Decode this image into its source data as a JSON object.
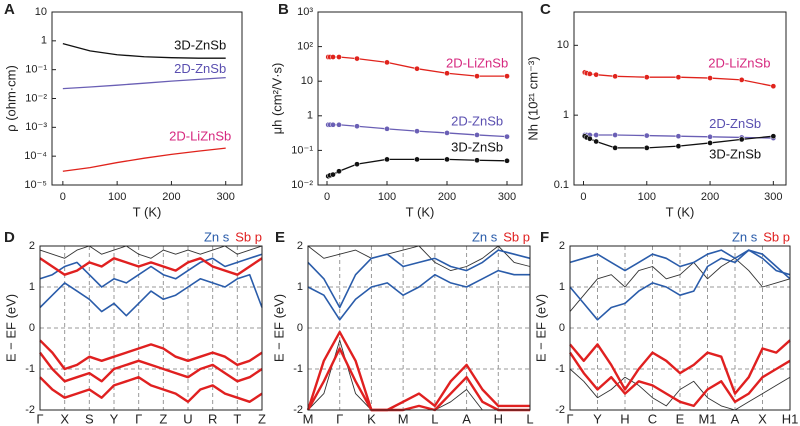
{
  "chart_data": [
    {
      "type": "line",
      "panel": "A",
      "y_label": "ρ (ohm·cm)",
      "x_label": "T (K)",
      "log_y": true,
      "xlim": [
        -20,
        330
      ],
      "xticks": [
        0,
        100,
        200,
        300
      ],
      "ylim": [
        1e-05,
        10
      ],
      "yticks": [
        {
          "value": 1e-05,
          "label": "10⁻⁵"
        },
        {
          "value": 0.0001,
          "label": "10⁻⁴"
        },
        {
          "value": 0.001,
          "label": "10⁻³"
        },
        {
          "value": 0.01,
          "label": "10⁻²"
        },
        {
          "value": 0.1,
          "label": "10⁻¹"
        },
        1,
        10
      ],
      "x": [
        0,
        50,
        100,
        150,
        200,
        250,
        300
      ],
      "series": [
        {
          "name": "3D-ZnSb",
          "color": "#111111",
          "label_color": "#111111",
          "values": [
            0.8,
            0.45,
            0.33,
            0.28,
            0.26,
            0.25,
            0.25
          ]
        },
        {
          "name": "2D-ZnSb",
          "color": "#6a5fb5",
          "label_color": "#5a4fb0",
          "values": [
            0.022,
            0.025,
            0.029,
            0.034,
            0.04,
            0.046,
            0.053
          ]
        },
        {
          "name": "2D-LiZnSb",
          "color": "#e0231c",
          "label_color": "#d6287f",
          "values": [
            3e-05,
            4e-05,
            6e-05,
            8.5e-05,
            0.000115,
            0.00015,
            0.00019
          ]
        }
      ]
    },
    {
      "type": "line",
      "panel": "B",
      "y_label": "μh (cm²/V·s)",
      "x_label": "T (K)",
      "log_y": true,
      "markers": true,
      "xlim": [
        -15,
        325
      ],
      "xticks": [
        0,
        100,
        200,
        300
      ],
      "ylim": [
        0.01,
        1000
      ],
      "yticks": [
        {
          "value": 0.01,
          "label": "10⁻²"
        },
        {
          "value": 0.1,
          "label": "10⁻¹"
        },
        1,
        10,
        {
          "value": 100,
          "label": "10²"
        },
        {
          "value": 1000,
          "label": "10³"
        }
      ],
      "x": [
        2,
        5,
        10,
        20,
        50,
        100,
        150,
        200,
        250,
        300
      ],
      "series": [
        {
          "name": "2D-LiZnSb",
          "color": "#e0231c",
          "label_color": "#d6287f",
          "values": [
            50,
            50,
            50,
            50,
            45,
            35,
            23,
            17,
            14,
            14
          ]
        },
        {
          "name": "2D-ZnSb",
          "color": "#6a5fb5",
          "label_color": "#5a4fb0",
          "values": [
            0.55,
            0.55,
            0.55,
            0.55,
            0.5,
            0.42,
            0.36,
            0.32,
            0.28,
            0.25
          ]
        },
        {
          "name": "3D-ZnSb",
          "color": "#111111",
          "label_color": "#111111",
          "values": [
            0.018,
            0.019,
            0.02,
            0.025,
            0.04,
            0.055,
            0.055,
            0.055,
            0.052,
            0.05
          ]
        }
      ]
    },
    {
      "type": "line",
      "panel": "C",
      "y_label": "Nh (10²¹ cm⁻³)",
      "x_label": "T (K)",
      "log_y": true,
      "markers": true,
      "xlim": [
        -15,
        320
      ],
      "xticks": [
        0,
        100,
        200,
        300
      ],
      "ylim": [
        0.1,
        30
      ],
      "yticks": [
        0.1,
        1,
        10
      ],
      "x": [
        2,
        5,
        10,
        20,
        50,
        100,
        150,
        200,
        250,
        300
      ],
      "series": [
        {
          "name": "2D-LiZnSb",
          "color": "#e0231c",
          "label_color": "#d6287f",
          "values": [
            4.1,
            4,
            3.9,
            3.8,
            3.6,
            3.5,
            3.5,
            3.4,
            3.2,
            2.6
          ]
        },
        {
          "name": "2D-ZnSb",
          "color": "#6a5fb5",
          "label_color": "#5a4fb0",
          "values": [
            0.52,
            0.52,
            0.52,
            0.52,
            0.52,
            0.51,
            0.5,
            0.49,
            0.48,
            0.47
          ]
        },
        {
          "name": "3D-ZnSb",
          "color": "#111111",
          "label_color": "#111111",
          "values": [
            0.5,
            0.48,
            0.46,
            0.42,
            0.34,
            0.34,
            0.36,
            0.4,
            0.45,
            0.5
          ]
        }
      ]
    },
    {
      "type": "band",
      "panel": "D",
      "y_label": "E − EF (eV)",
      "grid": true,
      "ylim": [
        -2,
        2
      ],
      "yticks": [
        -2,
        -1,
        0,
        1,
        2
      ],
      "categories": [
        "Γ",
        null,
        "X",
        null,
        "S",
        null,
        "Y",
        null,
        "Γ",
        null,
        "Z",
        null,
        "U",
        null,
        "R",
        null,
        "T",
        null,
        "Z"
      ],
      "series": [
        {
          "name": "Zn s",
          "color": "#2a5caa",
          "bands": [
            [
              0.5,
              0.8,
              1.1,
              0.9,
              0.7,
              0.4,
              0.6,
              0.3,
              0.6,
              0.9,
              0.7,
              0.8,
              1.0,
              1.2,
              1.1,
              1.0,
              1.2,
              1.3,
              0.5
            ],
            [
              1.2,
              1.3,
              1.5,
              1.6,
              1.3,
              1.0,
              1.2,
              1.1,
              1.3,
              1.5,
              1.3,
              1.2,
              1.4,
              1.6,
              1.7,
              1.5,
              1.6,
              1.7,
              1.8
            ]
          ]
        },
        {
          "name": "Sb p",
          "color": "#e02020",
          "bands": [
            [
              -0.3,
              -0.6,
              -1.0,
              -0.9,
              -0.7,
              -0.8,
              -0.7,
              -0.6,
              -0.5,
              -0.4,
              -0.5,
              -0.7,
              -0.8,
              -0.7,
              -0.6,
              -0.7,
              -0.9,
              -0.8,
              -0.6
            ],
            [
              -0.6,
              -1.0,
              -1.3,
              -1.2,
              -1.1,
              -1.3,
              -1.0,
              -0.9,
              -0.8,
              -0.9,
              -1.0,
              -1.1,
              -1.2,
              -1.0,
              -0.9,
              -1.1,
              -1.3,
              -1.2,
              -1.0
            ],
            [
              -1.2,
              -1.5,
              -1.7,
              -1.6,
              -1.5,
              -1.7,
              -1.4,
              -1.3,
              -1.2,
              -1.4,
              -1.5,
              -1.6,
              -1.8,
              -1.5,
              -1.4,
              -1.6,
              -1.7,
              -1.8,
              -1.6
            ],
            [
              1.7,
              1.5,
              1.3,
              1.4,
              1.6,
              1.5,
              1.7,
              1.6,
              1.5,
              1.6,
              1.5,
              1.4,
              1.6,
              1.7,
              1.5,
              1.4,
              1.3,
              1.5,
              1.7
            ]
          ]
        }
      ],
      "other_bands": {
        "color": "#333333",
        "bands": [
          [
            1.9,
            1.8,
            1.7,
            1.9,
            2.0,
            1.8,
            1.9,
            2.0,
            1.8,
            1.7,
            1.9,
            1.8,
            1.9,
            1.8,
            1.9,
            2.0,
            1.8,
            1.9,
            2.0
          ]
        ]
      }
    },
    {
      "type": "band",
      "panel": "E",
      "y_label": "E − EF (eV)",
      "grid": true,
      "ylim": [
        -2,
        2
      ],
      "yticks": [
        -2,
        -1,
        0,
        1,
        2
      ],
      "categories": [
        "M",
        null,
        "Γ",
        null,
        "K",
        null,
        "M",
        null,
        "L",
        null,
        "A",
        null,
        "H",
        null,
        "L"
      ],
      "series": [
        {
          "name": "Zn s",
          "color": "#2a5caa",
          "bands": [
            [
              1.0,
              0.8,
              0.2,
              0.7,
              1.0,
              1.1,
              0.8,
              1.0,
              1.3,
              1.1,
              1.0,
              1.2,
              1.4,
              1.3,
              1.3
            ],
            [
              1.6,
              1.2,
              0.5,
              1.3,
              1.7,
              1.8,
              1.5,
              1.6,
              1.7,
              1.5,
              1.4,
              1.6,
              1.9,
              1.8,
              1.7
            ]
          ]
        },
        {
          "name": "Sb p",
          "color": "#e02020",
          "bands": [
            [
              -2.0,
              -0.8,
              -0.1,
              -0.8,
              -2.0,
              -2.0,
              -1.8,
              -1.6,
              -1.9,
              -1.3,
              -0.9,
              -1.5,
              -1.9,
              -1.9,
              -1.9
            ],
            [
              -2.0,
              -1.3,
              -0.5,
              -1.3,
              -2.0,
              -2.0,
              -2.0,
              -1.9,
              -2.0,
              -1.6,
              -1.2,
              -1.8,
              -2.0,
              -2.0,
              -2.0
            ]
          ]
        }
      ],
      "other_bands": {
        "color": "#333333",
        "bands": [
          [
            2.0,
            1.7,
            1.8,
            1.9,
            1.7,
            1.8,
            1.9,
            2.0,
            1.6,
            1.4,
            1.5,
            1.7,
            2.0,
            1.6,
            1.5
          ],
          [
            -2.0,
            -1.6,
            -0.3,
            -1.6,
            -2.0,
            -2.0,
            -2.0,
            -2.0,
            -2.0,
            -1.8,
            -1.5,
            -2.0,
            -2.0,
            -2.0,
            -2.0
          ]
        ]
      }
    },
    {
      "type": "band",
      "panel": "F",
      "y_label": "E − EF (eV)",
      "grid": true,
      "ylim": [
        -2,
        2
      ],
      "yticks": [
        -2,
        -1,
        0,
        1,
        2
      ],
      "categories": [
        "Γ",
        null,
        "Y",
        null,
        "H",
        null,
        "C",
        null,
        "E",
        null,
        "M1",
        null,
        "A",
        null,
        "X",
        null,
        "H1"
      ],
      "series": [
        {
          "name": "Zn s",
          "color": "#2a5caa",
          "bands": [
            [
              1.0,
              0.6,
              0.2,
              0.5,
              0.6,
              0.9,
              1.1,
              1.0,
              0.8,
              0.9,
              1.5,
              1.7,
              1.6,
              1.9,
              1.8,
              1.5,
              1.2
            ],
            [
              1.6,
              1.7,
              1.8,
              1.6,
              1.4,
              1.6,
              1.8,
              1.7,
              1.5,
              1.6,
              1.8,
              1.9,
              1.7,
              1.9,
              1.7,
              1.4,
              1.3
            ]
          ]
        },
        {
          "name": "Sb p",
          "color": "#e02020",
          "bands": [
            [
              -0.4,
              -0.8,
              -0.4,
              -0.9,
              -1.5,
              -1.0,
              -0.6,
              -0.8,
              -1.1,
              -0.9,
              -0.6,
              -0.7,
              -1.6,
              -1.2,
              -0.5,
              -0.6,
              -0.3
            ],
            [
              -0.6,
              -1.1,
              -1.5,
              -1.2,
              -1.6,
              -1.3,
              -1.4,
              -1.6,
              -1.8,
              -1.9,
              -1.5,
              -1.3,
              -1.8,
              -1.6,
              -1.2,
              -1.0,
              -0.8
            ]
          ]
        }
      ],
      "other_bands": {
        "color": "#333333",
        "bands": [
          [
            0.4,
            0.8,
            1.2,
            1.3,
            1.0,
            1.4,
            1.5,
            1.2,
            1.3,
            1.6,
            1.2,
            1.5,
            1.7,
            1.4,
            1.0,
            1.1,
            1.2
          ],
          [
            -1.0,
            -1.3,
            -1.7,
            -1.5,
            -1.2,
            -1.4,
            -1.7,
            -1.9,
            -1.5,
            -1.3,
            -1.7,
            -1.9,
            -2.0,
            -1.8,
            -1.6,
            -1.4,
            -1.2
          ]
        ]
      }
    }
  ]
}
